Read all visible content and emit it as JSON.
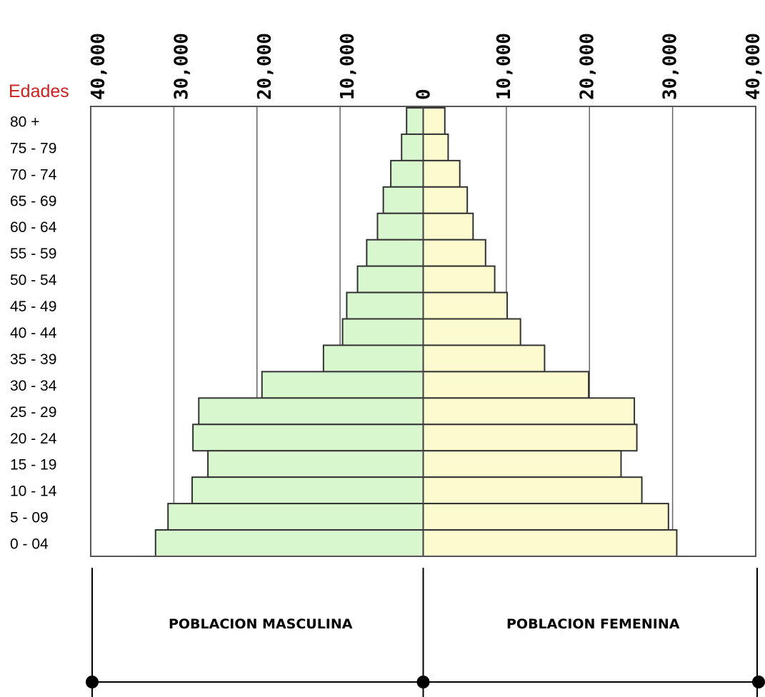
{
  "chart_data": {
    "type": "bar",
    "orientation": "horizontal",
    "y_axis_title": "Edades",
    "categories": [
      "80 +",
      "75 - 79",
      "70 - 74",
      "65 - 69",
      "60 - 64",
      "55 - 59",
      "50 - 54",
      "45 - 49",
      "40 - 44",
      "35 - 39",
      "30 - 34",
      "25 - 29",
      "20 - 24",
      "15 - 19",
      "10 - 14",
      "5 - 09",
      "0 - 04"
    ],
    "series": [
      {
        "name": "POBLACION MASCULINA",
        "color": "#d9f7cf",
        "values": [
          2000,
          2600,
          3900,
          4800,
          5500,
          6800,
          7900,
          9200,
          9700,
          12000,
          19400,
          27000,
          27700,
          25900,
          27800,
          30700,
          32200
        ]
      },
      {
        "name": "POBLACION FEMENINA",
        "color": "#fbfbcf",
        "values": [
          2600,
          3000,
          4400,
          5300,
          6000,
          7500,
          8600,
          10100,
          11700,
          14600,
          19900,
          25400,
          25700,
          23800,
          26300,
          29500,
          30500
        ]
      }
    ],
    "x_ticks_left": [
      "40,000",
      "30,000",
      "20,000",
      "10,000"
    ],
    "x_tick_center": "0",
    "x_ticks_right": [
      "10,000",
      "20,000",
      "30,000",
      "40,000"
    ],
    "xlim": [
      -40000,
      40000
    ],
    "grid": true,
    "colors": {
      "male": "#d9f7cf",
      "female": "#fbfbcf",
      "edades": "#cc2222",
      "border": "#333333"
    }
  }
}
